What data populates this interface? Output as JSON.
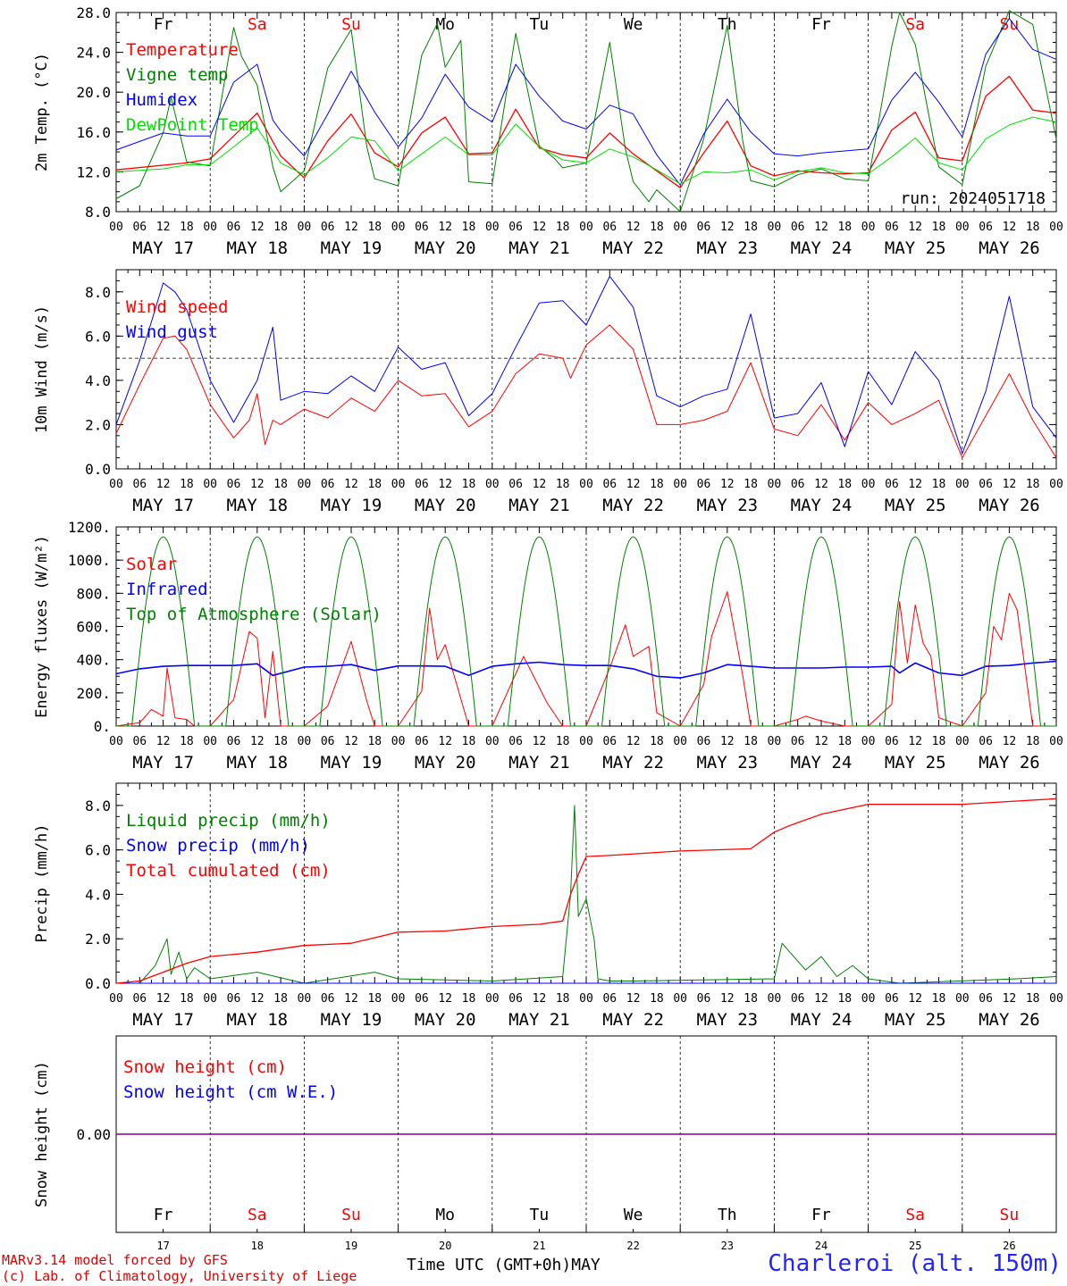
{
  "colors": {
    "red": "#ff0000",
    "green": "#008000",
    "blue": "#0000ff",
    "lime": "#00e000",
    "purple": "#800080",
    "black": "#000000"
  },
  "footer": {
    "model": "MARv3.14 model forced by GFS",
    "lab": "(c) Lab. of Climatology, University of Liege",
    "time_axis": "Time UTC (GMT+0h)",
    "month": "MAY",
    "station": "Charleroi (alt. 150m)"
  },
  "days": {
    "dates": [
      "MAY 17",
      "MAY 18",
      "MAY 19",
      "MAY 20",
      "MAY 21",
      "MAY 22",
      "MAY 23",
      "MAY 24",
      "MAY 25",
      "MAY 26"
    ],
    "weekdays": [
      "Fr",
      "Sa",
      "Su",
      "Mo",
      "Tu",
      "We",
      "Th",
      "Fr",
      "Sa",
      "Su"
    ],
    "weekday_colors": [
      "#000000",
      "#ff0000",
      "#ff0000",
      "#000000",
      "#000000",
      "#000000",
      "#000000",
      "#000000",
      "#ff0000",
      "#ff0000"
    ],
    "day_numbers": [
      "17",
      "18",
      "19",
      "20",
      "21",
      "22",
      "23",
      "24",
      "25",
      "26"
    ],
    "hour_ticks": [
      "00",
      "06",
      "12",
      "18"
    ],
    "final_tick": "00"
  },
  "chart_data": [
    {
      "type": "line",
      "ylabel": "2m Temp. (°C)",
      "ylim": [
        8,
        28
      ],
      "yticks": [
        "8.0",
        "12.0",
        "16.0",
        "20.0",
        "24.0",
        "28.0"
      ],
      "run": "run: 2024051718",
      "hlines": [],
      "show_weekdays": true,
      "series": [
        {
          "name": "Temperature",
          "color": "#ff0000",
          "width": 1.3,
          "x": [
            0,
            18,
            24,
            30,
            36,
            42,
            48,
            54,
            60,
            66,
            72,
            78,
            84,
            90,
            96,
            102,
            108,
            114,
            120,
            126,
            132,
            138,
            144,
            150,
            156,
            162,
            168,
            174,
            180,
            186,
            192,
            198,
            204,
            210,
            216,
            222,
            228,
            234,
            240
          ],
          "y": [
            12.2,
            12.9,
            13.3,
            15.6,
            17.9,
            13.6,
            11.4,
            15.1,
            17.8,
            13.9,
            12.5,
            15.9,
            17.5,
            13.8,
            13.9,
            18.3,
            14.4,
            13.7,
            13.4,
            15.9,
            13.8,
            12.1,
            10.4,
            13.9,
            17.1,
            12.6,
            11.6,
            12.1,
            11.9,
            11.8,
            11.9,
            16.2,
            18.0,
            13.4,
            13.1,
            19.6,
            21.6,
            18.2,
            17.9
          ]
        },
        {
          "name": "Vigne temp",
          "color": "#008000",
          "width": 1,
          "x": [
            0,
            6,
            12,
            14,
            18,
            24,
            30,
            32,
            36,
            40,
            42,
            48,
            54,
            60,
            64,
            66,
            72,
            78,
            82,
            84,
            88,
            90,
            96,
            102,
            108,
            112,
            114,
            120,
            126,
            130,
            132,
            136,
            138,
            144,
            150,
            156,
            160,
            162,
            168,
            174,
            180,
            186,
            192,
            198,
            200,
            204,
            210,
            216,
            222,
            228,
            234,
            240
          ],
          "y": [
            9.3,
            10.6,
            15.9,
            19.5,
            13.0,
            12.6,
            26.5,
            23.6,
            20.7,
            12.5,
            10.0,
            12.1,
            22.4,
            26.3,
            14.5,
            11.3,
            10.6,
            23.7,
            26.9,
            22.5,
            25.2,
            11.0,
            10.8,
            25.9,
            14.6,
            13.3,
            12.4,
            12.9,
            25.0,
            14.3,
            11.0,
            9.0,
            10.2,
            8.0,
            15.3,
            26.7,
            15.0,
            11.1,
            10.5,
            11.7,
            12.3,
            11.3,
            11.1,
            24.6,
            28.0,
            24.8,
            12.5,
            10.7,
            22.6,
            28.2,
            26.8,
            15.3
          ]
        },
        {
          "name": "Humidex",
          "color": "#0000ff",
          "width": 1,
          "x": [
            0,
            12,
            18,
            24,
            30,
            36,
            40,
            42,
            48,
            54,
            60,
            66,
            72,
            78,
            84,
            90,
            96,
            102,
            108,
            114,
            120,
            126,
            132,
            138,
            144,
            150,
            156,
            162,
            168,
            174,
            180,
            186,
            192,
            198,
            204,
            210,
            216,
            222,
            228,
            234,
            240
          ],
          "y": [
            14.2,
            15.9,
            15.6,
            15.6,
            21.0,
            22.8,
            17.2,
            16.1,
            13.6,
            17.8,
            22.1,
            18.0,
            14.5,
            17.4,
            21.8,
            18.5,
            17.0,
            22.8,
            19.6,
            17.1,
            16.3,
            18.7,
            17.8,
            13.7,
            10.7,
            15.8,
            19.3,
            16.0,
            13.8,
            13.6,
            13.9,
            14.1,
            14.3,
            19.2,
            22.0,
            19.0,
            15.5,
            23.8,
            27.4,
            24.3,
            23.3
          ]
        },
        {
          "name": "DewPoint Temp",
          "color": "#00e000",
          "width": 1,
          "x": [
            0,
            12,
            18,
            24,
            30,
            36,
            42,
            48,
            54,
            60,
            66,
            72,
            78,
            84,
            90,
            96,
            102,
            108,
            114,
            120,
            126,
            132,
            138,
            144,
            150,
            156,
            162,
            168,
            174,
            180,
            186,
            192,
            198,
            204,
            210,
            216,
            222,
            228,
            234,
            240
          ],
          "y": [
            12.0,
            12.3,
            12.7,
            12.7,
            14.5,
            16.4,
            12.9,
            11.7,
            13.4,
            15.5,
            15.1,
            12.1,
            13.8,
            15.5,
            13.7,
            13.7,
            16.8,
            14.5,
            13.2,
            12.9,
            14.3,
            13.5,
            12.2,
            10.8,
            12.0,
            11.9,
            12.2,
            11.2,
            12.0,
            12.4,
            11.9,
            11.8,
            13.5,
            15.4,
            12.9,
            12.2,
            15.3,
            16.7,
            17.5,
            17.0
          ]
        }
      ]
    },
    {
      "type": "line",
      "ylabel": "10m Wind (m/s)",
      "ylim": [
        0,
        9
      ],
      "yticks": [
        "0.0",
        "2.0",
        "4.0",
        "6.0",
        "8.0"
      ],
      "run": "",
      "hlines": [
        5.0
      ],
      "show_weekdays": false,
      "series": [
        {
          "name": "Wind speed",
          "color": "#ff0000",
          "width": 1,
          "x": [
            0,
            6,
            12,
            15,
            18,
            24,
            30,
            34,
            36,
            38,
            40,
            42,
            48,
            54,
            60,
            66,
            72,
            78,
            84,
            90,
            96,
            102,
            108,
            114,
            116,
            120,
            126,
            132,
            138,
            144,
            150,
            156,
            162,
            168,
            174,
            180,
            186,
            192,
            198,
            204,
            210,
            216,
            222,
            228,
            234,
            240
          ],
          "y": [
            1.6,
            3.8,
            5.9,
            6.0,
            5.4,
            2.9,
            1.4,
            2.2,
            3.4,
            1.1,
            2.2,
            2.0,
            2.7,
            2.3,
            3.2,
            2.6,
            4.0,
            3.3,
            3.4,
            1.9,
            2.6,
            4.3,
            5.2,
            5.0,
            4.1,
            5.6,
            6.5,
            5.4,
            2.0,
            2.0,
            2.2,
            2.6,
            4.8,
            1.8,
            1.5,
            2.9,
            1.3,
            3.0,
            2.0,
            2.5,
            3.1,
            0.5,
            2.4,
            4.3,
            2.2,
            0.5
          ]
        },
        {
          "name": "Wind gust",
          "color": "#0000ff",
          "width": 1,
          "x": [
            0,
            6,
            12,
            15,
            18,
            24,
            30,
            36,
            40,
            42,
            48,
            54,
            60,
            66,
            72,
            78,
            84,
            90,
            96,
            102,
            108,
            114,
            120,
            126,
            132,
            138,
            144,
            150,
            156,
            162,
            168,
            174,
            180,
            186,
            192,
            198,
            204,
            210,
            216,
            222,
            228,
            234,
            240
          ],
          "y": [
            2.0,
            4.9,
            8.4,
            8.0,
            7.2,
            4.0,
            2.1,
            4.0,
            6.4,
            3.1,
            3.5,
            3.4,
            4.2,
            3.5,
            5.5,
            4.5,
            4.8,
            2.4,
            3.4,
            5.5,
            7.5,
            7.6,
            6.5,
            8.7,
            7.3,
            3.3,
            2.8,
            3.3,
            3.6,
            7.0,
            2.3,
            2.5,
            3.9,
            1.0,
            4.4,
            2.9,
            5.3,
            4.0,
            0.7,
            3.5,
            7.8,
            2.8,
            1.4
          ]
        }
      ]
    },
    {
      "type": "line",
      "ylabel": "Energy fluxes (W/m²)",
      "ylim": [
        0,
        1200
      ],
      "yticks": [
        "0.",
        "200.",
        "400.",
        "600.",
        "800.",
        "1000.",
        "1200."
      ],
      "run": "",
      "hlines": [],
      "show_weekdays": false,
      "series": [
        {
          "name": "Solar",
          "color": "#ff0000",
          "width": 1,
          "x": [
            0,
            6,
            9,
            12,
            13,
            15,
            18,
            20,
            24,
            30,
            34,
            36,
            38,
            40,
            42,
            48,
            54,
            60,
            64,
            66,
            72,
            78,
            80,
            82,
            84,
            90,
            96,
            104,
            110,
            114,
            120,
            126,
            130,
            132,
            136,
            138,
            144,
            150,
            152,
            156,
            160,
            162,
            168,
            174,
            176,
            180,
            186,
            192,
            198,
            200,
            202,
            204,
            206,
            208,
            210,
            216,
            222,
            224,
            226,
            228,
            230,
            234,
            240
          ],
          "y": [
            0,
            20,
            100,
            60,
            350,
            50,
            40,
            0,
            0,
            160,
            570,
            530,
            50,
            450,
            0,
            0,
            120,
            510,
            150,
            0,
            0,
            210,
            710,
            400,
            490,
            0,
            0,
            420,
            140,
            0,
            0,
            350,
            610,
            420,
            480,
            80,
            0,
            250,
            540,
            810,
            300,
            0,
            0,
            40,
            60,
            30,
            0,
            0,
            130,
            750,
            380,
            730,
            500,
            420,
            50,
            0,
            200,
            600,
            520,
            800,
            700,
            0,
            0
          ]
        },
        {
          "name": "Infrared",
          "color": "#0000ff",
          "width": 1.6,
          "x": [
            0,
            6,
            12,
            18,
            24,
            30,
            36,
            40,
            48,
            54,
            60,
            66,
            72,
            78,
            84,
            90,
            96,
            102,
            108,
            114,
            120,
            126,
            132,
            138,
            144,
            150,
            156,
            162,
            168,
            174,
            180,
            186,
            192,
            198,
            200,
            204,
            210,
            216,
            222,
            228,
            234,
            240
          ],
          "y": [
            315,
            345,
            360,
            365,
            365,
            365,
            375,
            305,
            355,
            360,
            370,
            335,
            362,
            362,
            360,
            305,
            360,
            375,
            385,
            370,
            365,
            365,
            345,
            300,
            290,
            320,
            370,
            360,
            350,
            350,
            350,
            355,
            355,
            360,
            320,
            380,
            320,
            305,
            360,
            365,
            380,
            390
          ]
        },
        {
          "name": "Top of Atmosphere (Solar)",
          "color": "#008000",
          "width": 1,
          "diurnal": true,
          "peak": 1140,
          "start": 4,
          "end": 20
        }
      ]
    },
    {
      "type": "line",
      "ylabel": "Precip (mm/h)",
      "ylim": [
        0,
        9
      ],
      "yticks": [
        "0.0",
        "2.0",
        "4.0",
        "6.0",
        "8.0"
      ],
      "run": "",
      "hlines": [],
      "show_weekdays": false,
      "series": [
        {
          "name": "Liquid precip (mm/h)",
          "color": "#008000",
          "width": 1,
          "x": [
            0,
            6,
            10,
            13,
            14,
            16,
            18,
            20,
            24,
            36,
            48,
            66,
            72,
            96,
            114,
            116,
            117,
            118,
            120,
            122,
            123,
            126,
            132,
            168,
            170,
            172,
            176,
            180,
            184,
            188,
            190,
            192,
            200,
            230,
            240
          ],
          "y": [
            0,
            0,
            0.8,
            2.0,
            0.4,
            1.4,
            0.2,
            0.7,
            0.2,
            0.5,
            0,
            0.5,
            0.2,
            0.1,
            0.3,
            4.0,
            8.0,
            3.0,
            3.8,
            2.0,
            0.2,
            0.1,
            0.1,
            0.2,
            1.8,
            1.4,
            0.6,
            1.2,
            0.3,
            0.8,
            0.5,
            0.2,
            0,
            0.2,
            0.3
          ]
        },
        {
          "name": "Snow precip (mm/h)",
          "color": "#0000ff",
          "width": 1,
          "x": [
            0,
            240
          ],
          "y": [
            0,
            0
          ]
        },
        {
          "name": "Total cumulated (cm)",
          "color": "#ff0000",
          "width": 1.3,
          "x": [
            0,
            6,
            12,
            18,
            24,
            36,
            48,
            60,
            72,
            84,
            96,
            108,
            114,
            116,
            118,
            120,
            126,
            144,
            162,
            168,
            172,
            180,
            192,
            216,
            240
          ],
          "y": [
            0,
            0.1,
            0.5,
            0.9,
            1.2,
            1.4,
            1.7,
            1.8,
            2.3,
            2.35,
            2.55,
            2.65,
            2.8,
            4.0,
            4.9,
            5.7,
            5.75,
            5.95,
            6.05,
            6.8,
            7.1,
            7.6,
            8.05,
            8.05,
            8.3
          ]
        }
      ]
    },
    {
      "type": "line",
      "ylabel": "Snow height (cm)",
      "ylim": [
        -1,
        1
      ],
      "yticks": [
        "0.00"
      ],
      "run": "",
      "hlines": [],
      "show_weekdays": false,
      "series": [
        {
          "name": "Snow height (cm)",
          "color": "#ff0000",
          "width": 1,
          "x": [
            0,
            240
          ],
          "y": [
            0,
            0
          ]
        },
        {
          "name": "Snow height (cm W.E.)",
          "color": "#0000ff",
          "width": 1,
          "x": [
            0,
            240
          ],
          "y": [
            0,
            0
          ]
        },
        {
          "name": "",
          "color": "#800080",
          "width": 1.6,
          "x": [
            0,
            240
          ],
          "y": [
            0,
            0
          ]
        }
      ]
    }
  ]
}
